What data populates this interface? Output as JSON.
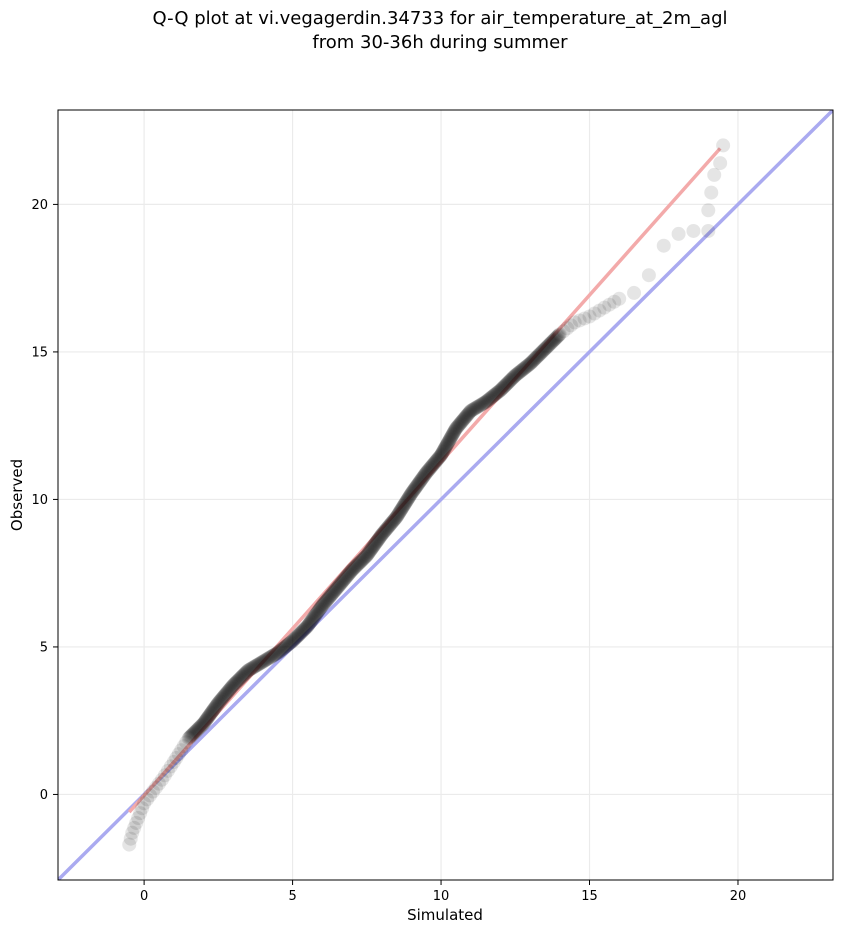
{
  "chart_data": {
    "type": "scatter",
    "title_line1": "Q-Q plot at vi.vegagerdin.34733 for air_temperature_at_2m_agl",
    "title_line2": "from 30-36h during summer",
    "xlabel": "Simulated",
    "ylabel": "Observed",
    "xlim": [
      -2.9,
      23.2
    ],
    "ylim": [
      -2.9,
      23.2
    ],
    "x_ticks": [
      0,
      5,
      10,
      15,
      20
    ],
    "y_ticks": [
      0,
      5,
      10,
      15,
      20
    ],
    "x_tick_labels": [
      "0",
      "5",
      "10",
      "15",
      "20"
    ],
    "y_tick_labels": [
      "0",
      "5",
      "10",
      "15",
      "20"
    ],
    "grid": true,
    "reference_line": {
      "name": "1:1",
      "color": "#aaaaf0",
      "from": [
        -2.9,
        -2.9
      ],
      "to": [
        23.2,
        23.2
      ]
    },
    "fit_line": {
      "color": "#f3aaaa",
      "from": [
        -0.5,
        -0.6
      ],
      "to": [
        19.4,
        21.9
      ]
    },
    "point_color": "#000000",
    "point_opacity": 0.1,
    "anchors": [
      [
        -0.5,
        -1.7
      ],
      [
        -0.4,
        -1.3
      ],
      [
        -0.2,
        -0.8
      ],
      [
        0.0,
        -0.3
      ],
      [
        0.3,
        0.1
      ],
      [
        0.6,
        0.5
      ],
      [
        1.0,
        1.1
      ],
      [
        1.5,
        1.9
      ],
      [
        2.0,
        2.4
      ],
      [
        2.5,
        3.1
      ],
      [
        3.0,
        3.7
      ],
      [
        3.5,
        4.2
      ],
      [
        4.0,
        4.5
      ],
      [
        4.5,
        4.8
      ],
      [
        5.0,
        5.2
      ],
      [
        5.5,
        5.7
      ],
      [
        6.0,
        6.4
      ],
      [
        6.5,
        7.0
      ],
      [
        7.0,
        7.6
      ],
      [
        7.5,
        8.1
      ],
      [
        8.0,
        8.8
      ],
      [
        8.5,
        9.4
      ],
      [
        9.0,
        10.2
      ],
      [
        9.5,
        10.9
      ],
      [
        10.0,
        11.5
      ],
      [
        10.5,
        12.4
      ],
      [
        11.0,
        13.0
      ],
      [
        11.5,
        13.3
      ],
      [
        12.0,
        13.7
      ],
      [
        12.5,
        14.2
      ],
      [
        13.0,
        14.6
      ],
      [
        13.5,
        15.1
      ],
      [
        14.0,
        15.6
      ],
      [
        14.5,
        16.0
      ],
      [
        15.0,
        16.2
      ],
      [
        15.5,
        16.5
      ],
      [
        16.0,
        16.8
      ],
      [
        16.5,
        17.0
      ],
      [
        17.0,
        17.6
      ],
      [
        17.5,
        18.6
      ],
      [
        18.0,
        19.0
      ],
      [
        18.5,
        19.1
      ],
      [
        19.0,
        19.1
      ],
      [
        19.0,
        19.8
      ],
      [
        19.1,
        20.4
      ],
      [
        19.2,
        21.0
      ],
      [
        19.4,
        21.4
      ],
      [
        19.5,
        22.0
      ]
    ]
  }
}
